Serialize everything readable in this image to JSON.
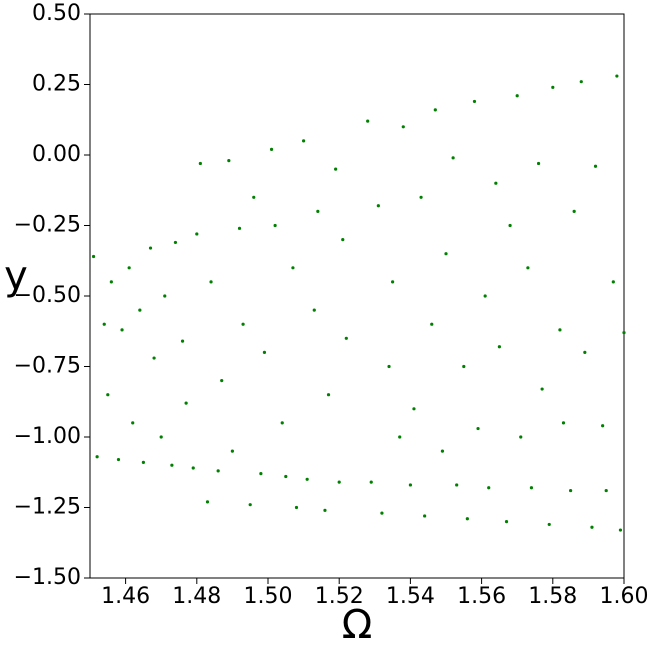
{
  "chart_data": {
    "type": "scatter",
    "xlabel": "Ω",
    "ylabel": "y",
    "xlim": [
      1.45,
      1.6
    ],
    "ylim": [
      -1.5,
      0.5
    ],
    "xticks": [
      1.46,
      1.48,
      {
        "value": 1.5,
        "label": "1.50"
      },
      1.52,
      1.54,
      1.56,
      1.58,
      {
        "value": 1.6,
        "label": "1.60"
      }
    ],
    "yticks": [
      {
        "value": 0.5,
        "label": "0.50"
      },
      {
        "value": 0.25,
        "label": "0.25"
      },
      {
        "value": 0,
        "label": "0.00"
      },
      {
        "value": -0.25,
        "label": "−0.25"
      },
      {
        "value": -0.5,
        "label": "−0.50"
      },
      {
        "value": -0.75,
        "label": "−0.75"
      },
      {
        "value": -1,
        "label": "−1.00"
      },
      {
        "value": -1.25,
        "label": "−1.25"
      },
      {
        "value": -1.5,
        "label": "−1.50"
      }
    ],
    "series": [
      {
        "color": "#008000",
        "x": [
          1.451,
          1.452,
          1.454,
          1.455,
          1.456,
          1.458,
          1.459,
          1.461,
          1.462,
          1.464,
          1.465,
          1.467,
          1.468,
          1.47,
          1.471,
          1.473,
          1.474,
          1.476,
          1.477,
          1.479,
          1.48,
          1.481,
          1.483,
          1.484,
          1.486,
          1.487,
          1.489,
          1.49,
          1.492,
          1.493,
          1.495,
          1.496,
          1.498,
          1.499,
          1.501,
          1.502,
          1.504,
          1.505,
          1.507,
          1.508,
          1.51,
          1.511,
          1.513,
          1.514,
          1.516,
          1.517,
          1.519,
          1.52,
          1.521,
          1.522,
          1.528,
          1.529,
          1.531,
          1.532,
          1.534,
          1.535,
          1.537,
          1.538,
          1.54,
          1.541,
          1.543,
          1.544,
          1.546,
          1.547,
          1.549,
          1.55,
          1.552,
          1.553,
          1.555,
          1.556,
          1.558,
          1.559,
          1.561,
          1.562,
          1.564,
          1.565,
          1.567,
          1.568,
          1.57,
          1.571,
          1.573,
          1.574,
          1.576,
          1.577,
          1.579,
          1.58,
          1.582,
          1.583,
          1.585,
          1.586,
          1.588,
          1.589,
          1.591,
          1.592,
          1.594,
          1.595,
          1.597,
          1.598,
          1.599,
          1.6
        ],
        "values": [
          -0.36,
          -1.07,
          -0.6,
          -0.85,
          -0.45,
          -1.08,
          -0.62,
          -0.4,
          -0.95,
          -0.55,
          -1.09,
          -0.33,
          -0.72,
          -1.0,
          -0.5,
          -1.1,
          -0.31,
          -0.66,
          -0.88,
          -1.11,
          -0.28,
          -0.03,
          -1.23,
          -0.45,
          -1.12,
          -0.8,
          -0.02,
          -1.05,
          -0.26,
          -0.6,
          -1.24,
          -0.15,
          -1.13,
          -0.7,
          0.02,
          -0.25,
          -0.95,
          -1.14,
          -0.4,
          -1.25,
          0.05,
          -1.15,
          -0.55,
          -0.2,
          -1.26,
          -0.85,
          -0.05,
          -1.16,
          -0.3,
          -0.65,
          0.12,
          -1.16,
          -0.18,
          -1.27,
          -0.75,
          -0.45,
          -1.0,
          0.1,
          -1.17,
          -0.9,
          -0.15,
          -1.28,
          -0.6,
          0.16,
          -1.05,
          -0.35,
          -0.01,
          -1.17,
          -0.75,
          -1.29,
          0.19,
          -0.97,
          -0.5,
          -1.18,
          -0.1,
          -0.68,
          -1.3,
          -0.25,
          0.21,
          -1.0,
          -0.4,
          -1.18,
          -0.03,
          -0.83,
          -1.31,
          0.24,
          -0.62,
          -0.95,
          -1.19,
          -0.2,
          0.26,
          -0.7,
          -1.32,
          -0.04,
          -0.96,
          -1.19,
          -0.45,
          0.28,
          -1.33,
          -0.63
        ]
      }
    ]
  }
}
